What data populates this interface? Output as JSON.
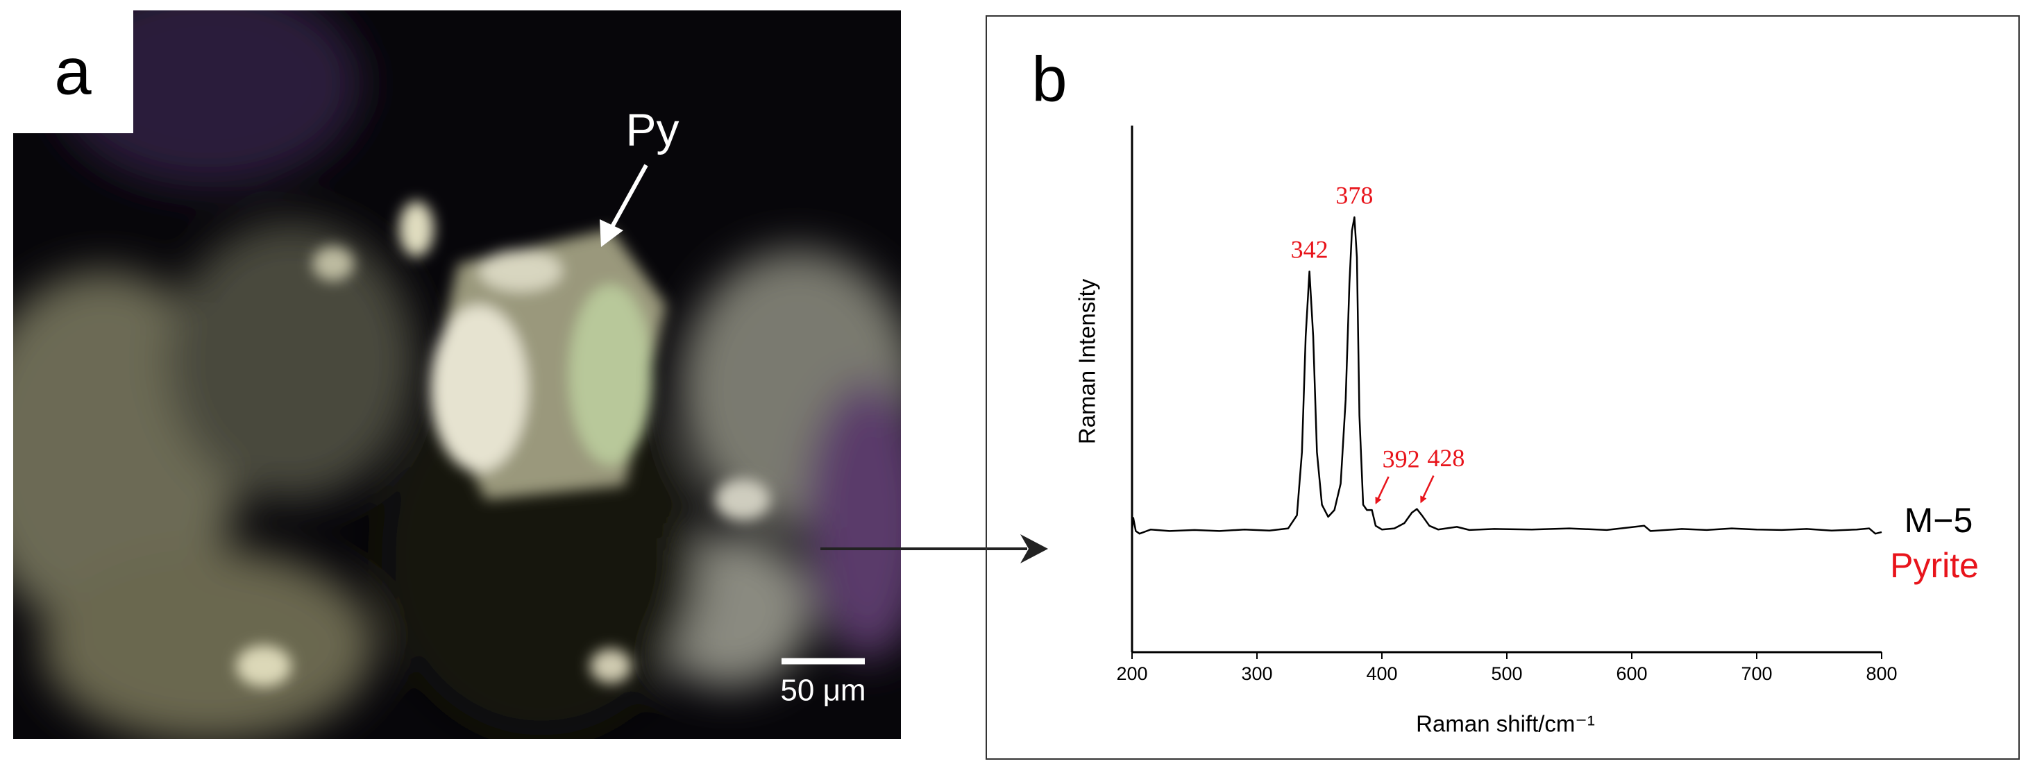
{
  "panel_a": {
    "label": "a",
    "annotation": "Py",
    "scale_bar": "50 μm"
  },
  "chart_data": {
    "type": "line",
    "panel_label": "b",
    "xlabel": "Raman shift/cm⁻¹",
    "ylabel": "Raman Intensity",
    "x": [
      200,
      201,
      203,
      206,
      215,
      230,
      250,
      270,
      290,
      310,
      325,
      332,
      336,
      339,
      342,
      345,
      348,
      352,
      357,
      362,
      367,
      371,
      374,
      376,
      378,
      380,
      382,
      385,
      388,
      392,
      395,
      400,
      410,
      418,
      424,
      428,
      432,
      438,
      445,
      460,
      470,
      490,
      520,
      550,
      580,
      610,
      615,
      640,
      660,
      680,
      700,
      720,
      740,
      760,
      780,
      790,
      795,
      800
    ],
    "series": [
      {
        "name": "M−5",
        "color": "#000000",
        "values": [
          23,
          25.5,
          23,
          22.5,
          23.3,
          23,
          23.2,
          23,
          23.3,
          23.1,
          23.5,
          26,
          38,
          60,
          72.3,
          60,
          38,
          28,
          25.7,
          27,
          32,
          48,
          70,
          80,
          82.6,
          75,
          45,
          28,
          27,
          27,
          24,
          23.3,
          23.5,
          24.5,
          26.5,
          27.2,
          26,
          24,
          23.3,
          23.8,
          23.2,
          23.4,
          23.3,
          23.5,
          23.2,
          24,
          23,
          23.4,
          23.2,
          23.5,
          23.3,
          23.2,
          23.4,
          23.1,
          23.3,
          23.5,
          22.5,
          22.8
        ]
      }
    ],
    "sample_label": "Pyrite",
    "sample_label_color": "#e8141b",
    "peaks": [
      342,
      378,
      392,
      428
    ],
    "peak_color": "#e8141b",
    "xlim": [
      200,
      800
    ],
    "xticks": [
      200,
      300,
      400,
      500,
      600,
      700,
      800
    ],
    "ylim": [
      0,
      100
    ],
    "grid": false
  }
}
